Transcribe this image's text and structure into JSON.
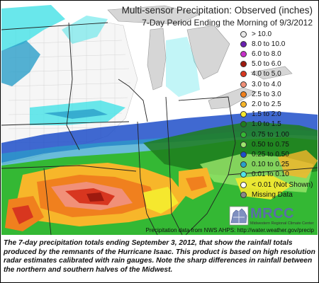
{
  "title": "Multi-sensor Precipitation:  Observed (inches)",
  "subtitle": "7-Day Period Ending the Morning of 9/3/2012",
  "legend": [
    {
      "label": "> 10.0",
      "color": "#e8e8e8"
    },
    {
      "label": "8.0 to 10.0",
      "color": "#6a1fb0"
    },
    {
      "label": "6.0 to 8.0",
      "color": "#c72fc9"
    },
    {
      "label": "5.0 to 6.0",
      "color": "#9e1a0f"
    },
    {
      "label": "4.0 to 5.0",
      "color": "#d8361f"
    },
    {
      "label": "3.0 to 4.0",
      "color": "#f19078"
    },
    {
      "label": "2.5 to 3.0",
      "color": "#f0801e"
    },
    {
      "label": "2.0 to 2.5",
      "color": "#f7b62a"
    },
    {
      "label": "1.5 to 2.0",
      "color": "#f5e82e"
    },
    {
      "label": "1.0 to 1.5",
      "color": "#1f7d1f"
    },
    {
      "label": "0.75 to 1.00",
      "color": "#34b834"
    },
    {
      "label": "0.50 to 0.75",
      "color": "#9ce66b"
    },
    {
      "label": "0.25 to 0.50",
      "color": "#1e4fc9"
    },
    {
      "label": "0.10 to 0.25",
      "color": "#2a9fc9"
    },
    {
      "label": "0.01 to 0.10",
      "color": "#4fe3e8"
    },
    {
      "label": "< 0.01 (Not Shown)",
      "color": "#ffffff"
    },
    {
      "label": "Missing Data",
      "color": "#888888"
    }
  ],
  "logo": {
    "text": "MRCC",
    "subtext": "Midwestern Regional Climate Center"
  },
  "source": "Precipitation data from NWS AHPS:  http://water.weather.gov/precip",
  "caption": "The 7-day precipitation totals ending September 3, 2012, that show the rainfall totals produced by the remnants of the Hurricane Isaac. This product is based on high resolution radar estimates calibrated with rain gauges. Note the sharp differences in rainfall between the northern and southern halves of the Midwest."
}
